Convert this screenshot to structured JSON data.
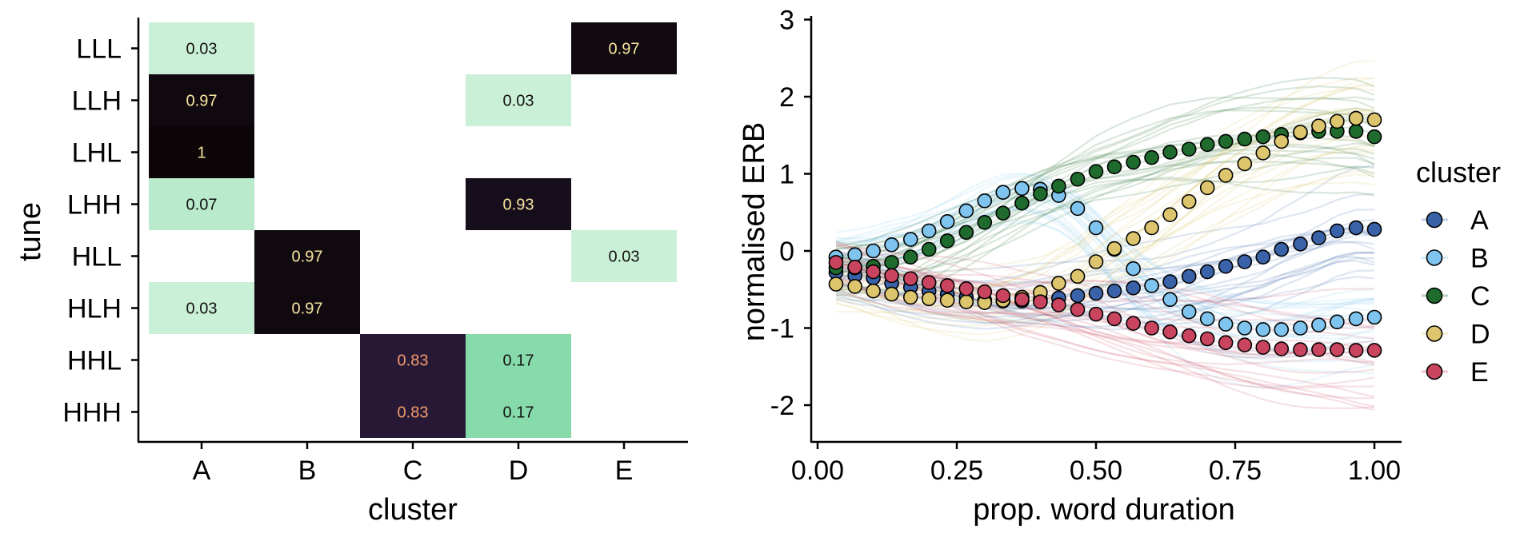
{
  "chart_data": [
    {
      "type": "heatmap",
      "xlabel": "cluster",
      "ylabel": "tune",
      "x_categories": [
        "A",
        "B",
        "C",
        "D",
        "E"
      ],
      "y_categories": [
        "LLL",
        "LLH",
        "LHL",
        "LHH",
        "HLL",
        "HLH",
        "HHL",
        "HHH"
      ],
      "cells": [
        {
          "x": "A",
          "y": "LLL",
          "value": 0.03,
          "label": "0.03"
        },
        {
          "x": "E",
          "y": "LLL",
          "value": 0.97,
          "label": "0.97"
        },
        {
          "x": "A",
          "y": "LLH",
          "value": 0.97,
          "label": "0.97"
        },
        {
          "x": "D",
          "y": "LLH",
          "value": 0.03,
          "label": "0.03"
        },
        {
          "x": "A",
          "y": "LHL",
          "value": 1.0,
          "label": "1"
        },
        {
          "x": "A",
          "y": "LHH",
          "value": 0.07,
          "label": "0.07"
        },
        {
          "x": "D",
          "y": "LHH",
          "value": 0.93,
          "label": "0.93"
        },
        {
          "x": "B",
          "y": "HLL",
          "value": 0.97,
          "label": "0.97"
        },
        {
          "x": "E",
          "y": "HLL",
          "value": 0.03,
          "label": "0.03"
        },
        {
          "x": "A",
          "y": "HLH",
          "value": 0.03,
          "label": "0.03"
        },
        {
          "x": "B",
          "y": "HLH",
          "value": 0.97,
          "label": "0.97"
        },
        {
          "x": "C",
          "y": "HHL",
          "value": 0.83,
          "label": "0.83"
        },
        {
          "x": "D",
          "y": "HHL",
          "value": 0.17,
          "label": "0.17"
        },
        {
          "x": "C",
          "y": "HHH",
          "value": 0.83,
          "label": "0.83"
        },
        {
          "x": "D",
          "y": "HHH",
          "value": 0.17,
          "label": "0.17"
        }
      ]
    },
    {
      "type": "scatter",
      "xlabel": "prop. word duration",
      "ylabel": "normalised ERB",
      "xlim": [
        -0.02,
        1.05
      ],
      "ylim": [
        -2.5,
        3.05
      ],
      "x_ticks": [
        "0.00",
        "0.25",
        "0.50",
        "0.75",
        "1.00"
      ],
      "y_ticks": [
        "-2",
        "-1",
        "0",
        "1",
        "2",
        "3"
      ],
      "legend_title": "cluster",
      "legend_position": "right",
      "x": [
        0.033,
        0.067,
        0.1,
        0.133,
        0.167,
        0.2,
        0.233,
        0.267,
        0.3,
        0.333,
        0.367,
        0.4,
        0.433,
        0.467,
        0.5,
        0.533,
        0.567,
        0.6,
        0.633,
        0.667,
        0.7,
        0.733,
        0.767,
        0.8,
        0.833,
        0.867,
        0.9,
        0.933,
        0.967,
        1.0
      ],
      "series": [
        {
          "name": "A",
          "color": "#3a62a8",
          "values": [
            -0.28,
            -0.32,
            -0.35,
            -0.42,
            -0.47,
            -0.52,
            -0.56,
            -0.6,
            -0.64,
            -0.65,
            -0.65,
            -0.63,
            -0.61,
            -0.58,
            -0.55,
            -0.52,
            -0.48,
            -0.45,
            -0.4,
            -0.33,
            -0.27,
            -0.2,
            -0.14,
            -0.08,
            0.02,
            0.09,
            0.17,
            0.26,
            0.3,
            0.28
          ]
        },
        {
          "name": "B",
          "color": "#7ec4ee",
          "values": [
            -0.08,
            -0.05,
            0.0,
            0.08,
            0.15,
            0.26,
            0.38,
            0.52,
            0.65,
            0.76,
            0.81,
            0.8,
            0.72,
            0.55,
            0.3,
            0.02,
            -0.23,
            -0.45,
            -0.63,
            -0.79,
            -0.88,
            -0.95,
            -1.0,
            -1.02,
            -1.02,
            -1.0,
            -0.96,
            -0.92,
            -0.88,
            -0.86
          ]
        },
        {
          "name": "C",
          "color": "#1f6b2e",
          "values": [
            -0.22,
            -0.22,
            -0.2,
            -0.15,
            -0.08,
            0.02,
            0.13,
            0.24,
            0.37,
            0.49,
            0.62,
            0.74,
            0.84,
            0.93,
            1.03,
            1.09,
            1.15,
            1.21,
            1.28,
            1.32,
            1.38,
            1.42,
            1.45,
            1.48,
            1.51,
            1.53,
            1.55,
            1.55,
            1.55,
            1.48
          ]
        },
        {
          "name": "D",
          "color": "#dcc56c",
          "values": [
            -0.43,
            -0.46,
            -0.52,
            -0.56,
            -0.6,
            -0.62,
            -0.64,
            -0.66,
            -0.67,
            -0.64,
            -0.6,
            -0.54,
            -0.42,
            -0.33,
            -0.14,
            0.03,
            0.16,
            0.3,
            0.47,
            0.64,
            0.82,
            0.98,
            1.13,
            1.27,
            1.42,
            1.54,
            1.62,
            1.68,
            1.72,
            1.7
          ]
        },
        {
          "name": "E",
          "color": "#c9455f",
          "values": [
            -0.15,
            -0.21,
            -0.27,
            -0.32,
            -0.36,
            -0.41,
            -0.45,
            -0.49,
            -0.53,
            -0.58,
            -0.63,
            -0.66,
            -0.7,
            -0.76,
            -0.82,
            -0.88,
            -0.94,
            -1.0,
            -1.05,
            -1.1,
            -1.14,
            -1.19,
            -1.22,
            -1.25,
            -1.27,
            -1.28,
            -1.28,
            -1.28,
            -1.29,
            -1.29
          ]
        }
      ]
    }
  ]
}
